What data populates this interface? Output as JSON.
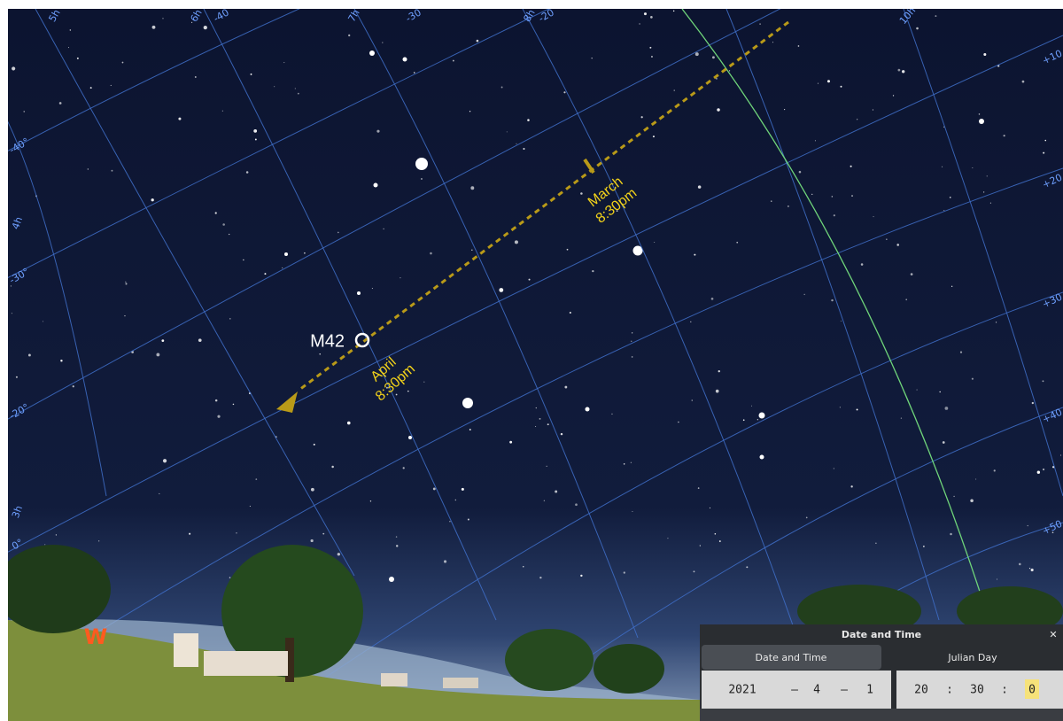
{
  "annotations": {
    "m42": "M42",
    "march": [
      "March",
      "8:30pm"
    ],
    "april": [
      "April",
      "8:30pm"
    ],
    "west": "W"
  },
  "grid_labels": {
    "top": [
      "5h",
      "6h",
      "-40",
      "7h",
      "-30",
      "8h",
      "-20",
      "10h"
    ],
    "left": [
      "-40°",
      "4h",
      "-30°",
      "-20°",
      "3h",
      "0°"
    ],
    "right": [
      "+10",
      "+20",
      "+30",
      "+40",
      "+50"
    ]
  },
  "dialog": {
    "title": "Date and Time",
    "close": "✕",
    "tabs": [
      "Date and Time",
      "Julian Day"
    ],
    "date": {
      "year": "2021",
      "month": "4",
      "day": "1",
      "separator": "–"
    },
    "time": {
      "hour": "20",
      "minute": "30",
      "second": "0",
      "separator": ":"
    }
  }
}
